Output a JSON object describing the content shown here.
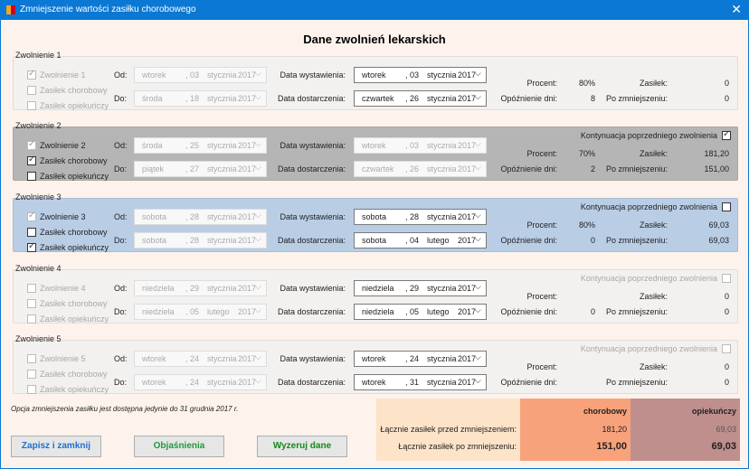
{
  "window": {
    "title": "Zmniejszenie wartości zasiłku chorobowego",
    "close_icon": "close-icon",
    "app_icon": "app-icon"
  },
  "heading": "Dane zwolnień lekarskich",
  "labels": {
    "od": "Od:",
    "do": "Do:",
    "wyst": "Data wystawienia:",
    "dost": "Data dostarczenia:",
    "procent": "Procent:",
    "opoz": "Opóźnienie dni:",
    "zasilek": "Zasiłek:",
    "po": "Po zmniejszeniu:",
    "kont": "Kontynuacja poprzedniego zwolnienia",
    "chor": "Zasiłek chorobowy",
    "opiek": "Zasiłek opiekuńczy"
  },
  "sections": [
    {
      "legend": "Zwolnienie 1",
      "name": "Zwolnienie 1",
      "bg": "#f3f1ef",
      "active": false,
      "checks": [
        true,
        false,
        false
      ],
      "show_kont": false,
      "kont": false,
      "right_enabled": true,
      "od": [
        "wtorek",
        "03",
        "stycznia",
        "2017"
      ],
      "do": [
        "środa",
        "18",
        "stycznia",
        "2017"
      ],
      "wyst": [
        "wtorek",
        "03",
        "stycznia",
        "2017"
      ],
      "dost": [
        "czwartek",
        "26",
        "stycznia",
        "2017"
      ],
      "procent": "80%",
      "opoz": "8",
      "zasilek": "0",
      "po": "0"
    },
    {
      "legend": "Zwolnienie 2",
      "name": "Zwolnienie 2",
      "bg": "#b5b5b5",
      "active": true,
      "checks": [
        true,
        true,
        false
      ],
      "show_kont": true,
      "kont": true,
      "right_enabled": false,
      "od": [
        "środa",
        "25",
        "stycznia",
        "2017"
      ],
      "do": [
        "piątek",
        "27",
        "stycznia",
        "2017"
      ],
      "wyst": [
        "wtorek",
        "03",
        "stycznia",
        "2017"
      ],
      "dost": [
        "czwartek",
        "26",
        "stycznia",
        "2017"
      ],
      "procent": "70%",
      "opoz": "2",
      "zasilek": "181,20",
      "po": "151,00"
    },
    {
      "legend": "Zwolnienie 3",
      "name": "Zwolnienie 3",
      "bg": "#b9cde5",
      "active": true,
      "checks": [
        true,
        false,
        true
      ],
      "show_kont": true,
      "kont": false,
      "right_enabled": true,
      "od": [
        "sobota",
        "28",
        "stycznia",
        "2017"
      ],
      "do": [
        "sobota",
        "28",
        "stycznia",
        "2017"
      ],
      "wyst": [
        "sobota",
        "28",
        "stycznia",
        "2017"
      ],
      "dost": [
        "sobota",
        "04",
        "lutego",
        "2017"
      ],
      "procent": "80%",
      "opoz": "0",
      "zasilek": "69,03",
      "po": "69,03"
    },
    {
      "legend": "Zwolnienie 4",
      "name": "Zwolnienie 4",
      "bg": "#f3f1ef",
      "active": false,
      "checks": [
        false,
        false,
        false
      ],
      "show_kont": true,
      "kont": false,
      "kont_disabled": true,
      "right_enabled": true,
      "od": [
        "niedziela",
        "29",
        "stycznia",
        "2017"
      ],
      "do": [
        "niedziela",
        "05",
        "lutego",
        "2017"
      ],
      "wyst": [
        "niedziela",
        "29",
        "stycznia",
        "2017"
      ],
      "dost": [
        "niedziela",
        "05",
        "lutego",
        "2017"
      ],
      "procent": "",
      "opoz": "0",
      "zasilek": "0",
      "po": "0"
    },
    {
      "legend": "Zwolnienie 5",
      "name": "Zwolnienie 5",
      "bg": "#f3f1ef",
      "active": false,
      "checks": [
        false,
        false,
        false
      ],
      "show_kont": true,
      "kont": false,
      "kont_disabled": true,
      "right_enabled": true,
      "od": [
        "wtorek",
        "24",
        "stycznia",
        "2017"
      ],
      "do": [
        "wtorek",
        "24",
        "stycznia",
        "2017"
      ],
      "wyst": [
        "wtorek",
        "24",
        "stycznia",
        "2017"
      ],
      "dost": [
        "wtorek",
        "31",
        "stycznia",
        "2017"
      ],
      "procent": "",
      "opoz": "",
      "zasilek": "0",
      "po": "0"
    }
  ],
  "note": "Opcja zmniejszenia zasiłku jest dostępna jedynie do 31 grudnia 2017 r.",
  "totals": {
    "col_chor": "chorobowy",
    "col_opiek": "opiekuńczy",
    "row1": "Łącznie zasiłek przed zmniejszeniem:",
    "row2": "Łącznie zasiłek po zmniejszeniu:",
    "chor_before": "181,20",
    "opiek_before": "69,03",
    "chor_after": "151,00",
    "opiek_after": "69,03",
    "colors": {
      "label": "#fde3c8",
      "chor": "#f8a27c",
      "opiek": "#bf8f8d"
    }
  },
  "buttons": {
    "save": "Zapisz i zamknij",
    "explain": "Objaśnienia",
    "reset": "Wyzeruj dane"
  }
}
